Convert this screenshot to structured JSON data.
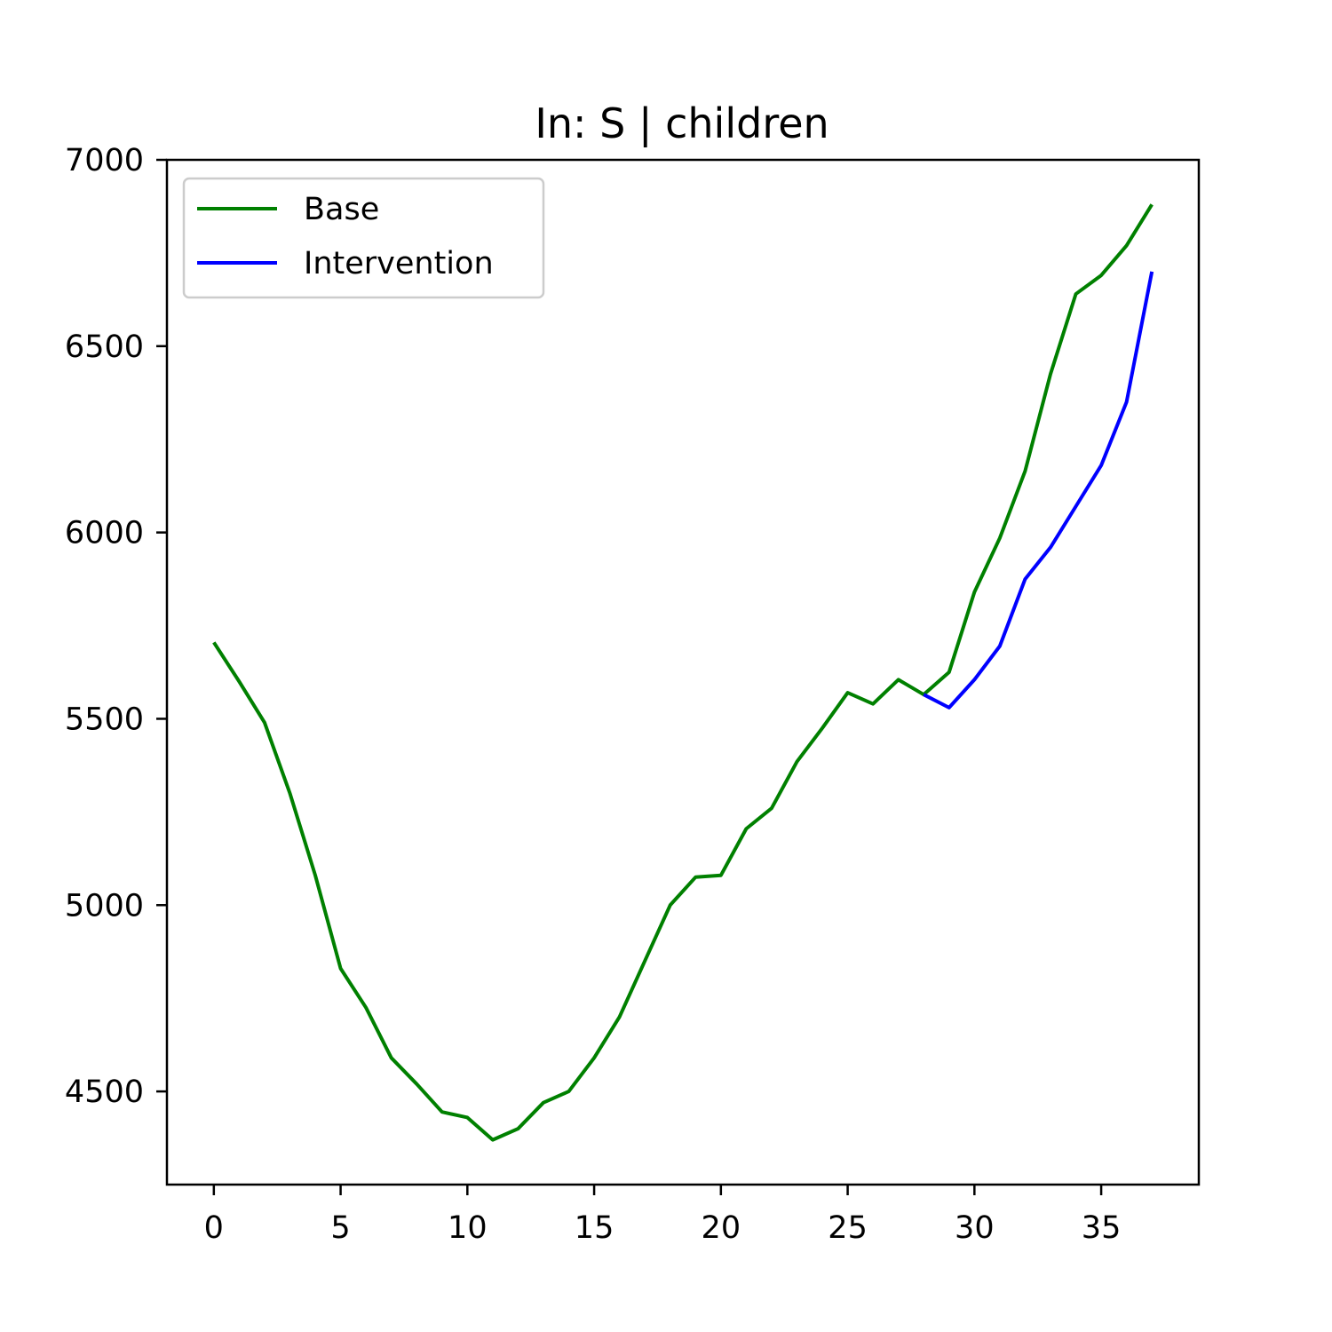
{
  "chart_data": {
    "type": "line",
    "title": "In: S | children",
    "xlabel": "",
    "ylabel": "",
    "xlim": [
      -1.85,
      38.85
    ],
    "ylim": [
      4250,
      7000
    ],
    "xticks": [
      0,
      5,
      10,
      15,
      20,
      25,
      30,
      35
    ],
    "yticks": [
      4500,
      5000,
      5500,
      6000,
      6500,
      7000
    ],
    "grid": false,
    "legend_position": "top-left",
    "series": [
      {
        "name": "Base",
        "color": "#008000",
        "x": [
          0,
          1,
          2,
          3,
          4,
          5,
          6,
          7,
          8,
          9,
          10,
          11,
          12,
          13,
          14,
          15,
          16,
          17,
          18,
          19,
          20,
          21,
          22,
          23,
          24,
          25,
          26,
          27,
          28,
          29,
          30,
          31,
          32,
          33,
          34,
          35,
          36,
          37
        ],
        "values": [
          5705,
          5600,
          5490,
          5300,
          5080,
          4830,
          4725,
          4590,
          4520,
          4445,
          4430,
          4370,
          4400,
          4470,
          4500,
          4590,
          4700,
          4850,
          5000,
          5075,
          5080,
          5205,
          5260,
          5385,
          5475,
          5570,
          5540,
          5605,
          5565,
          5625,
          5840,
          5985,
          6165,
          6425,
          6640,
          6690,
          6770,
          6880
        ]
      },
      {
        "name": "Intervention",
        "color": "#0000ff",
        "x": [
          28,
          29,
          30,
          31,
          32,
          33,
          34,
          35,
          36,
          37
        ],
        "values": [
          5565,
          5530,
          5605,
          5695,
          5875,
          5960,
          6070,
          6180,
          6350,
          6700
        ]
      }
    ]
  }
}
